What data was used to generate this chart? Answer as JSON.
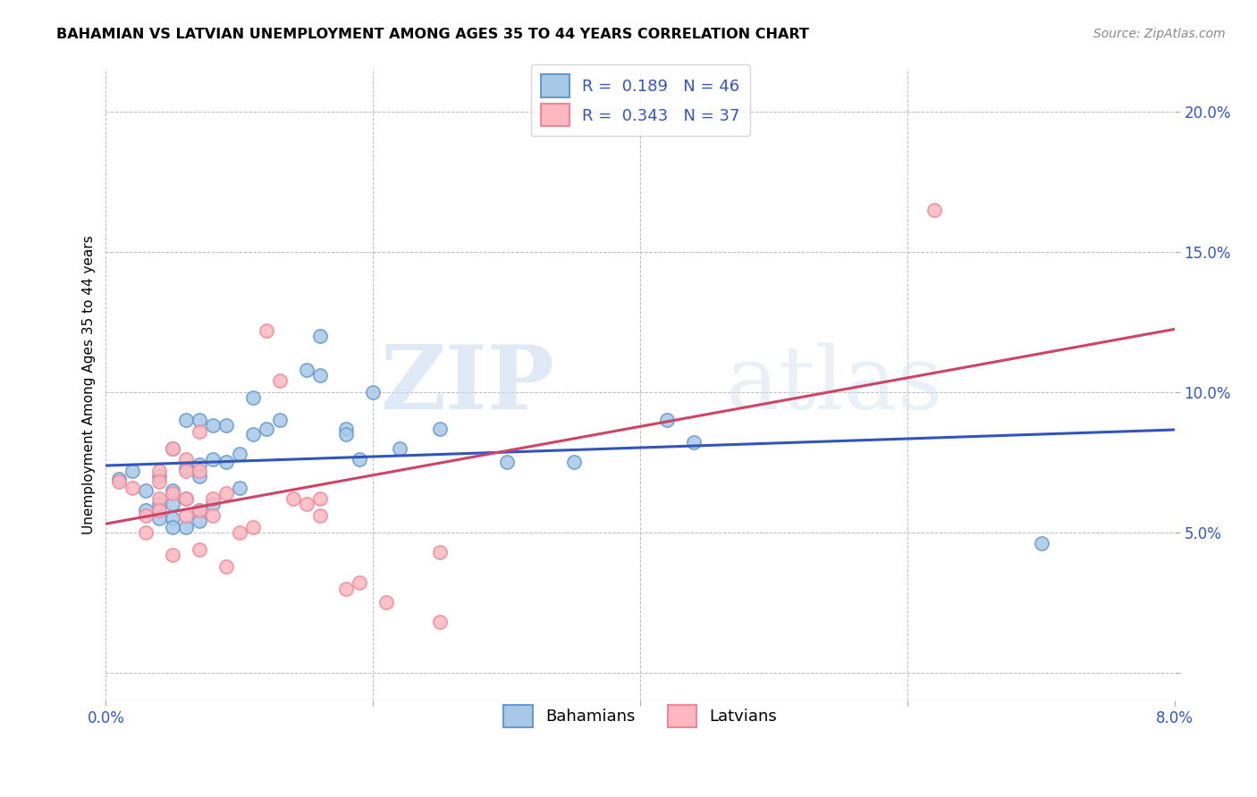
{
  "title": "BAHAMIAN VS LATVIAN UNEMPLOYMENT AMONG AGES 35 TO 44 YEARS CORRELATION CHART",
  "source": "Source: ZipAtlas.com",
  "ylabel": "Unemployment Among Ages 35 to 44 years",
  "xlim": [
    0.0,
    0.08
  ],
  "ylim": [
    -0.01,
    0.215
  ],
  "x_ticks": [
    0.0,
    0.02,
    0.04,
    0.06,
    0.08
  ],
  "y_ticks": [
    0.0,
    0.05,
    0.1,
    0.15,
    0.2
  ],
  "y_tick_labels": [
    "",
    "5.0%",
    "10.0%",
    "15.0%",
    "20.0%"
  ],
  "bahamian_color": "#a8c8e8",
  "bahamian_edge": "#6699cc",
  "latvian_color": "#ffb8c0",
  "latvian_edge": "#ee8899",
  "blue_line_color": "#3355bb",
  "pink_line_color": "#cc4466",
  "bahamian_R": 0.189,
  "bahamian_N": 46,
  "latvian_R": 0.343,
  "latvian_N": 37,
  "watermark_zip": "ZIP",
  "watermark_atlas": "atlas",
  "bahamian_points": [
    [
      0.001,
      0.069
    ],
    [
      0.002,
      0.072
    ],
    [
      0.003,
      0.065
    ],
    [
      0.003,
      0.058
    ],
    [
      0.004,
      0.07
    ],
    [
      0.004,
      0.06
    ],
    [
      0.004,
      0.055
    ],
    [
      0.005,
      0.08
    ],
    [
      0.005,
      0.065
    ],
    [
      0.005,
      0.06
    ],
    [
      0.005,
      0.055
    ],
    [
      0.005,
      0.052
    ],
    [
      0.006,
      0.09
    ],
    [
      0.006,
      0.073
    ],
    [
      0.006,
      0.062
    ],
    [
      0.006,
      0.052
    ],
    [
      0.007,
      0.09
    ],
    [
      0.007,
      0.074
    ],
    [
      0.007,
      0.07
    ],
    [
      0.007,
      0.058
    ],
    [
      0.007,
      0.054
    ],
    [
      0.008,
      0.088
    ],
    [
      0.008,
      0.076
    ],
    [
      0.008,
      0.06
    ],
    [
      0.009,
      0.088
    ],
    [
      0.009,
      0.075
    ],
    [
      0.01,
      0.078
    ],
    [
      0.01,
      0.066
    ],
    [
      0.011,
      0.098
    ],
    [
      0.011,
      0.085
    ],
    [
      0.012,
      0.087
    ],
    [
      0.013,
      0.09
    ],
    [
      0.015,
      0.108
    ],
    [
      0.016,
      0.12
    ],
    [
      0.016,
      0.106
    ],
    [
      0.018,
      0.087
    ],
    [
      0.018,
      0.085
    ],
    [
      0.019,
      0.076
    ],
    [
      0.02,
      0.1
    ],
    [
      0.022,
      0.08
    ],
    [
      0.025,
      0.087
    ],
    [
      0.03,
      0.075
    ],
    [
      0.035,
      0.075
    ],
    [
      0.042,
      0.09
    ],
    [
      0.044,
      0.082
    ],
    [
      0.07,
      0.046
    ]
  ],
  "latvian_points": [
    [
      0.001,
      0.068
    ],
    [
      0.002,
      0.066
    ],
    [
      0.003,
      0.056
    ],
    [
      0.003,
      0.05
    ],
    [
      0.004,
      0.072
    ],
    [
      0.004,
      0.068
    ],
    [
      0.004,
      0.062
    ],
    [
      0.004,
      0.058
    ],
    [
      0.005,
      0.08
    ],
    [
      0.005,
      0.064
    ],
    [
      0.005,
      0.042
    ],
    [
      0.006,
      0.076
    ],
    [
      0.006,
      0.072
    ],
    [
      0.006,
      0.062
    ],
    [
      0.006,
      0.056
    ],
    [
      0.007,
      0.086
    ],
    [
      0.007,
      0.072
    ],
    [
      0.007,
      0.058
    ],
    [
      0.007,
      0.044
    ],
    [
      0.008,
      0.062
    ],
    [
      0.008,
      0.056
    ],
    [
      0.009,
      0.064
    ],
    [
      0.009,
      0.038
    ],
    [
      0.01,
      0.05
    ],
    [
      0.011,
      0.052
    ],
    [
      0.012,
      0.122
    ],
    [
      0.013,
      0.104
    ],
    [
      0.014,
      0.062
    ],
    [
      0.015,
      0.06
    ],
    [
      0.016,
      0.062
    ],
    [
      0.016,
      0.056
    ],
    [
      0.018,
      0.03
    ],
    [
      0.019,
      0.032
    ],
    [
      0.021,
      0.025
    ],
    [
      0.025,
      0.018
    ],
    [
      0.025,
      0.043
    ],
    [
      0.062,
      0.165
    ]
  ]
}
